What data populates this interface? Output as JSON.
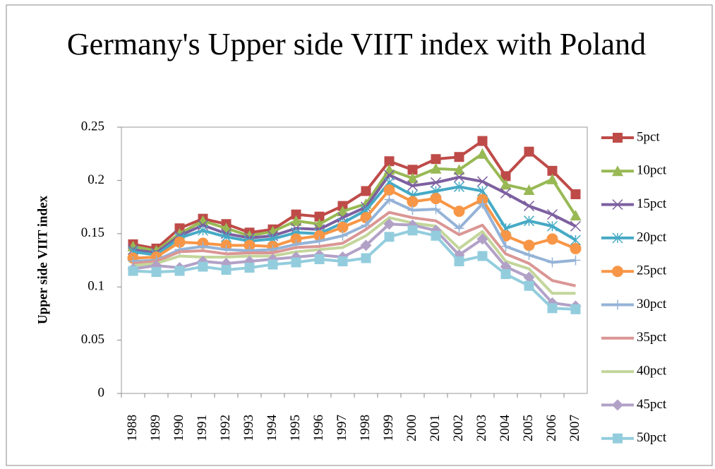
{
  "chart_data": {
    "type": "line",
    "title": "Germany's Upper side VIIT index with Poland",
    "y_label": "Upper side VIIT index",
    "categories": [
      "1988",
      "1989",
      "1990",
      "1991",
      "1992",
      "1993",
      "1994",
      "1995",
      "1996",
      "1997",
      "1998",
      "1999",
      "2000",
      "2001",
      "2002",
      "2003",
      "2004",
      "2005",
      "2006",
      "2007"
    ],
    "ylim": [
      0,
      0.25
    ],
    "yticks": [
      0,
      0.05,
      0.1,
      0.15,
      0.2,
      0.25
    ],
    "grid": false,
    "legend": "right",
    "series": [
      {
        "name": "5pct",
        "color": "#be4b48",
        "marker": "square",
        "values": [
          0.14,
          0.136,
          0.155,
          0.164,
          0.159,
          0.151,
          0.154,
          0.168,
          0.166,
          0.176,
          0.19,
          0.218,
          0.21,
          0.22,
          0.222,
          0.237,
          0.204,
          0.227,
          0.209,
          0.187
        ]
      },
      {
        "name": "10pct",
        "color": "#98b954",
        "marker": "triangle",
        "values": [
          0.138,
          0.134,
          0.15,
          0.162,
          0.155,
          0.148,
          0.152,
          0.162,
          0.159,
          0.171,
          0.178,
          0.21,
          0.202,
          0.211,
          0.21,
          0.225,
          0.196,
          0.191,
          0.201,
          0.167
        ]
      },
      {
        "name": "15pct",
        "color": "#7d60a0",
        "marker": "x",
        "values": [
          0.135,
          0.132,
          0.148,
          0.158,
          0.15,
          0.146,
          0.148,
          0.155,
          0.154,
          0.165,
          0.175,
          0.205,
          0.195,
          0.198,
          0.203,
          0.199,
          0.188,
          0.176,
          0.168,
          0.157
        ]
      },
      {
        "name": "20pct",
        "color": "#46aac5",
        "marker": "star",
        "values": [
          0.133,
          0.13,
          0.146,
          0.153,
          0.147,
          0.143,
          0.145,
          0.151,
          0.15,
          0.16,
          0.172,
          0.198,
          0.186,
          0.19,
          0.194,
          0.19,
          0.155,
          0.162,
          0.157,
          0.144
        ]
      },
      {
        "name": "25pct",
        "color": "#f79646",
        "marker": "circle",
        "values": [
          0.127,
          0.128,
          0.142,
          0.141,
          0.139,
          0.139,
          0.138,
          0.145,
          0.148,
          0.156,
          0.165,
          0.191,
          0.18,
          0.183,
          0.171,
          0.182,
          0.148,
          0.139,
          0.145,
          0.136
        ]
      },
      {
        "name": "30pct",
        "color": "#95b3d7",
        "marker": "plus",
        "values": [
          0.124,
          0.125,
          0.135,
          0.138,
          0.135,
          0.134,
          0.135,
          0.14,
          0.143,
          0.148,
          0.158,
          0.182,
          0.172,
          0.173,
          0.155,
          0.178,
          0.138,
          0.13,
          0.123,
          0.125
        ]
      },
      {
        "name": "35pct",
        "color": "#da9694",
        "marker": "none",
        "values": [
          0.122,
          0.124,
          0.133,
          0.134,
          0.131,
          0.132,
          0.132,
          0.137,
          0.138,
          0.141,
          0.154,
          0.17,
          0.165,
          0.162,
          0.149,
          0.158,
          0.131,
          0.122,
          0.106,
          0.101
        ]
      },
      {
        "name": "40pct",
        "color": "#c3d69b",
        "marker": "none",
        "values": [
          0.12,
          0.122,
          0.129,
          0.128,
          0.128,
          0.129,
          0.129,
          0.133,
          0.135,
          0.137,
          0.148,
          0.165,
          0.16,
          0.157,
          0.136,
          0.152,
          0.124,
          0.117,
          0.094,
          0.094
        ]
      },
      {
        "name": "45pct",
        "color": "#b2a1c7",
        "marker": "diamond",
        "values": [
          0.117,
          0.12,
          0.118,
          0.124,
          0.122,
          0.124,
          0.126,
          0.128,
          0.13,
          0.128,
          0.139,
          0.159,
          0.158,
          0.153,
          0.13,
          0.145,
          0.119,
          0.109,
          0.085,
          0.082
        ]
      },
      {
        "name": "50pct",
        "color": "#93cddd",
        "marker": "square",
        "values": [
          0.115,
          0.114,
          0.115,
          0.119,
          0.116,
          0.118,
          0.121,
          0.123,
          0.126,
          0.124,
          0.127,
          0.147,
          0.153,
          0.148,
          0.124,
          0.129,
          0.112,
          0.101,
          0.08,
          0.079
        ]
      }
    ]
  }
}
